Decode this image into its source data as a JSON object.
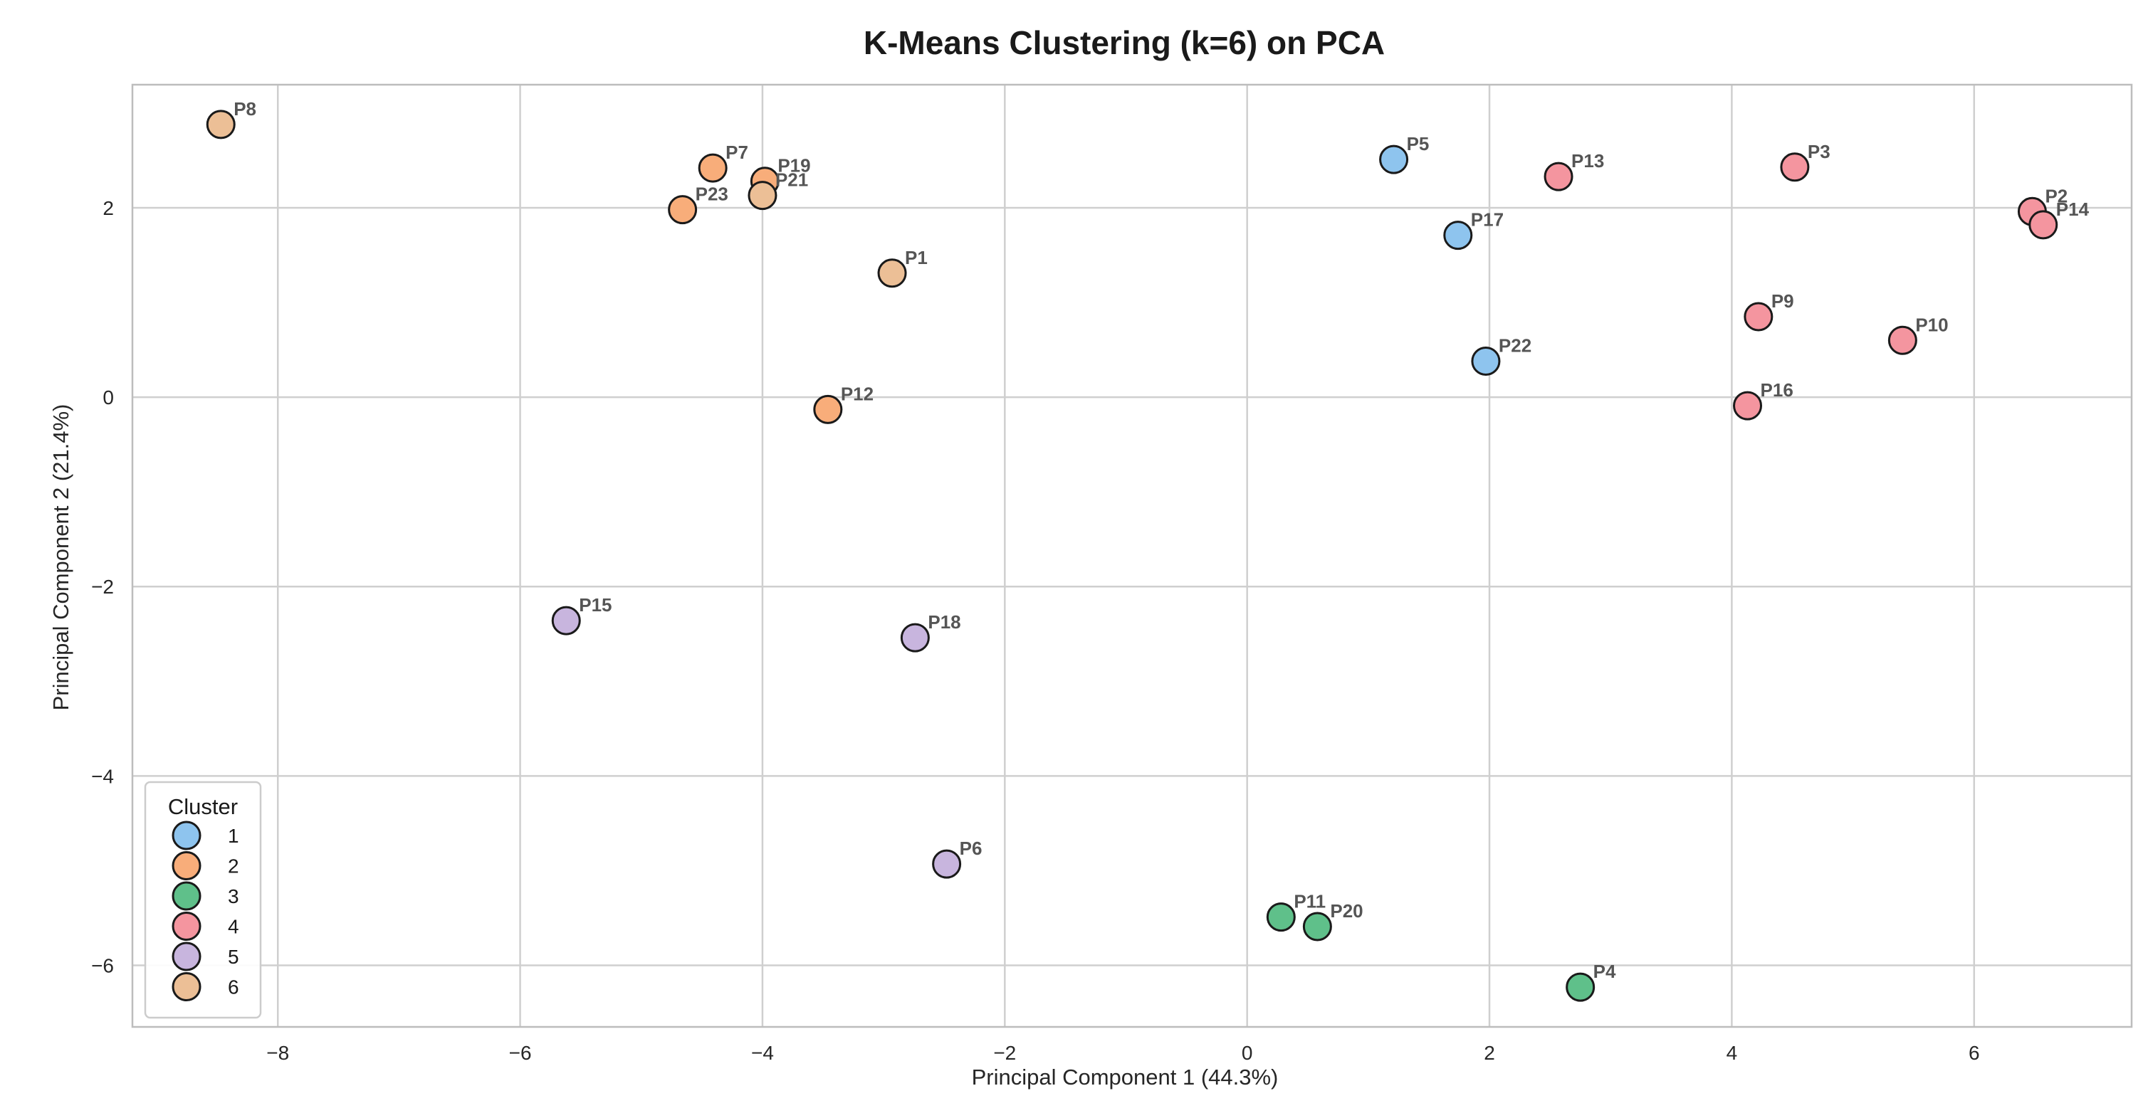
{
  "chart_data": {
    "type": "scatter",
    "title": "K-Means Clustering (k=6) on PCA",
    "xlabel": "Principal Component 1 (44.3%)",
    "ylabel": "Principal Component 2 (21.4%)",
    "xlim": [
      -9.2,
      7.3
    ],
    "ylim": [
      -6.65,
      3.3
    ],
    "xticks": [
      -8,
      -6,
      -4,
      -2,
      0,
      2,
      4,
      6
    ],
    "yticks": [
      -6,
      -4,
      -2,
      0,
      2
    ],
    "xtick_labels": [
      "−8",
      "−6",
      "−4",
      "−2",
      "0",
      "2",
      "4",
      "6"
    ],
    "ytick_labels": [
      "−6",
      "−4",
      "−2",
      "0",
      "2"
    ],
    "grid": true,
    "legend": {
      "title": "Cluster",
      "position": "bottom-left",
      "entries": [
        {
          "label": "1",
          "color": "#8ec4ee"
        },
        {
          "label": "2",
          "color": "#f8ad7a"
        },
        {
          "label": "3",
          "color": "#5fc08a"
        },
        {
          "label": "4",
          "color": "#f4959f"
        },
        {
          "label": "5",
          "color": "#c8b5de"
        },
        {
          "label": "6",
          "color": "#ecbf96"
        }
      ]
    },
    "points": [
      {
        "label": "P1",
        "x": -2.93,
        "y": 1.31,
        "cluster": 6
      },
      {
        "label": "P2",
        "x": 6.48,
        "y": 1.96,
        "cluster": 4
      },
      {
        "label": "P3",
        "x": 4.52,
        "y": 2.43,
        "cluster": 4
      },
      {
        "label": "P4",
        "x": 2.75,
        "y": -6.23,
        "cluster": 3
      },
      {
        "label": "P5",
        "x": 1.21,
        "y": 2.51,
        "cluster": 1
      },
      {
        "label": "P6",
        "x": -2.48,
        "y": -4.93,
        "cluster": 5
      },
      {
        "label": "P7",
        "x": -4.41,
        "y": 2.42,
        "cluster": 2
      },
      {
        "label": "P8",
        "x": -8.47,
        "y": 2.88,
        "cluster": 6
      },
      {
        "label": "P9",
        "x": 4.22,
        "y": 0.85,
        "cluster": 4
      },
      {
        "label": "P10",
        "x": 5.41,
        "y": 0.6,
        "cluster": 4
      },
      {
        "label": "P11",
        "x": 0.28,
        "y": -5.49,
        "cluster": 3
      },
      {
        "label": "P12",
        "x": -3.46,
        "y": -0.13,
        "cluster": 2
      },
      {
        "label": "P13",
        "x": 2.57,
        "y": 2.33,
        "cluster": 4
      },
      {
        "label": "P14",
        "x": 6.57,
        "y": 1.82,
        "cluster": 4
      },
      {
        "label": "P15",
        "x": -5.62,
        "y": -2.36,
        "cluster": 5
      },
      {
        "label": "P16",
        "x": 4.13,
        "y": -0.09,
        "cluster": 4
      },
      {
        "label": "P17",
        "x": 1.74,
        "y": 1.71,
        "cluster": 1
      },
      {
        "label": "P18",
        "x": -2.74,
        "y": -2.54,
        "cluster": 5
      },
      {
        "label": "P19",
        "x": -3.98,
        "y": 2.28,
        "cluster": 2
      },
      {
        "label": "P20",
        "x": 0.58,
        "y": -5.59,
        "cluster": 3
      },
      {
        "label": "P21",
        "x": -4.0,
        "y": 2.13,
        "cluster": 6
      },
      {
        "label": "P22",
        "x": 1.97,
        "y": 0.38,
        "cluster": 1
      },
      {
        "label": "P23",
        "x": -4.66,
        "y": 1.98,
        "cluster": 2
      }
    ]
  }
}
